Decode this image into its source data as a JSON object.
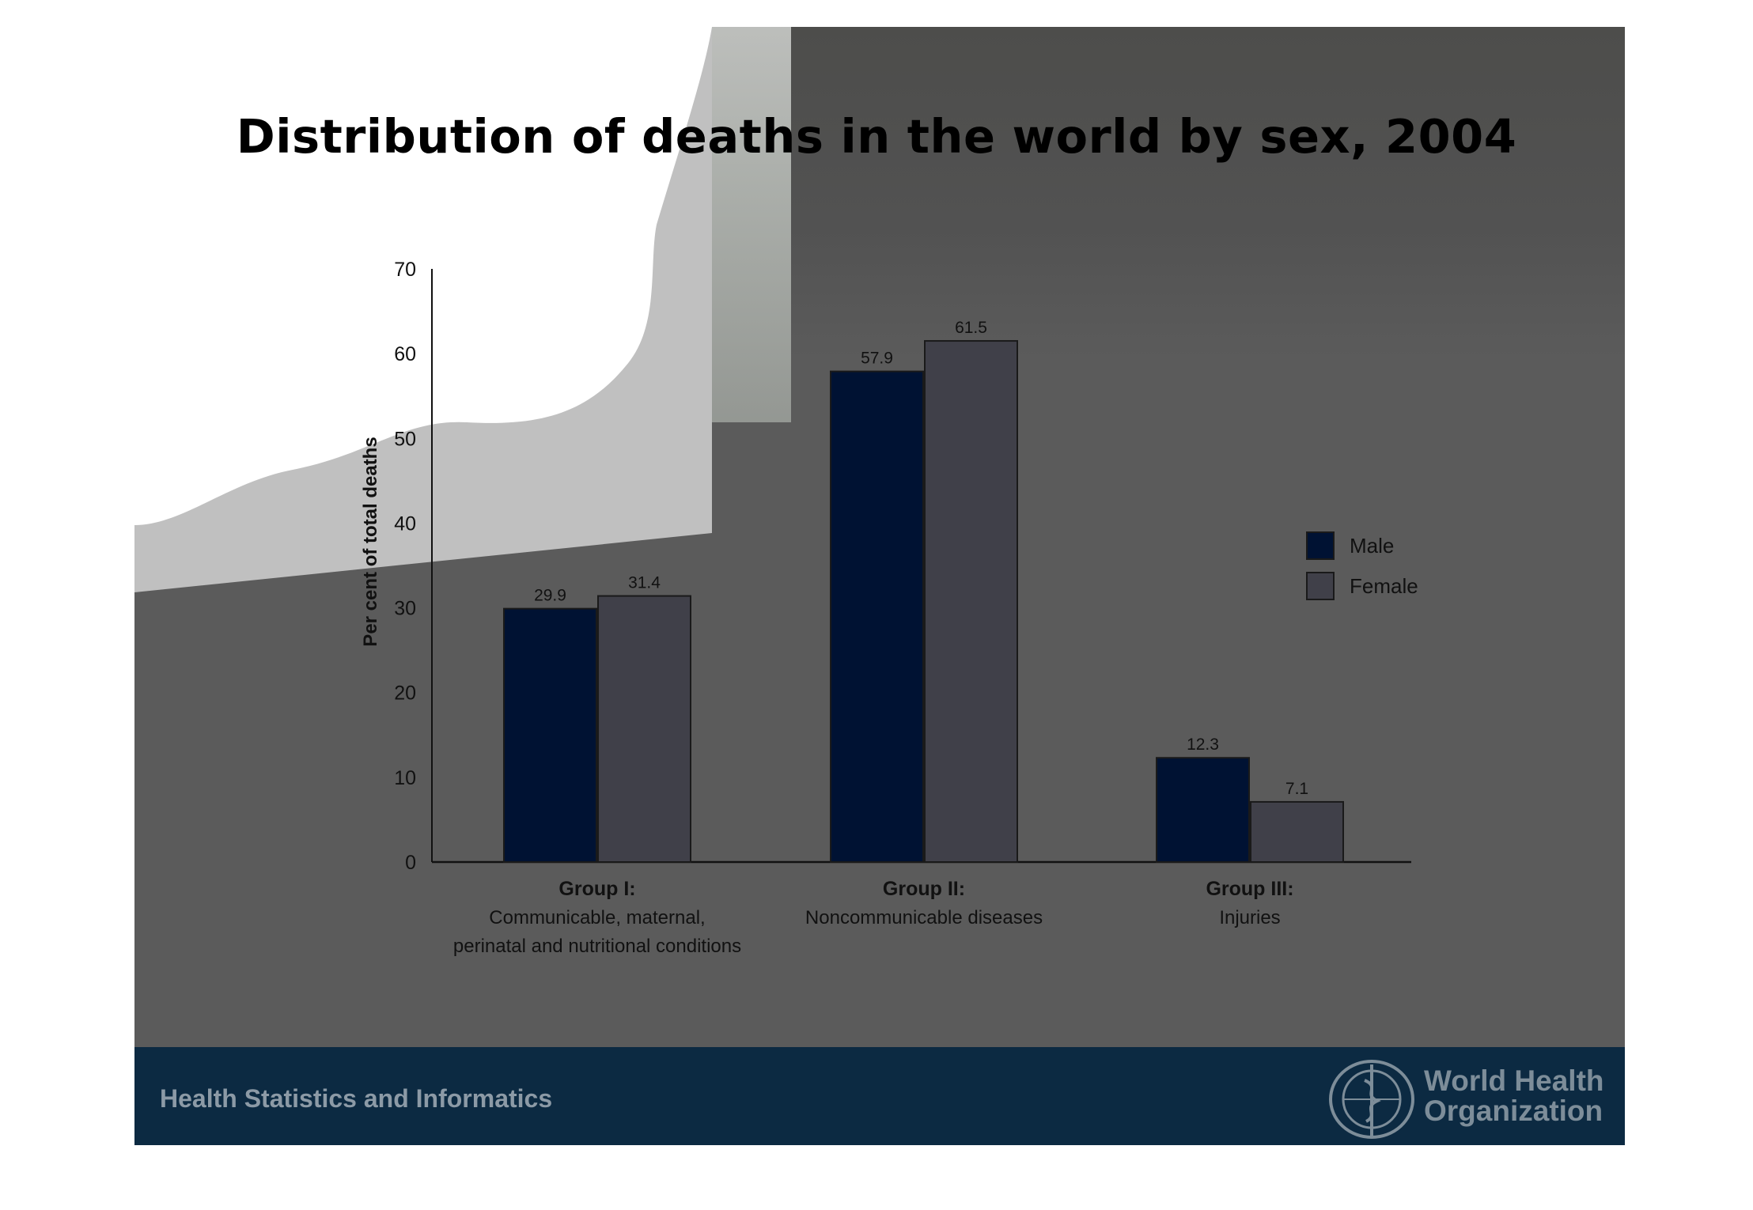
{
  "title": "Distribution of deaths in the world by sex, 2004",
  "footer": {
    "left_text": "Health Statistics and Informatics",
    "org_line1": "World Health",
    "org_line2": "Organization",
    "logo_icon": "who-emblem-icon"
  },
  "colors": {
    "male": "#001233",
    "female": "#404049",
    "slide_bg": "#5b5b5b",
    "footer_bg": "#0c2a42"
  },
  "chart_data": {
    "type": "bar",
    "title": "Distribution of deaths in the world by sex, 2004",
    "ylabel": "Per cent of  total deaths",
    "xlabel": "",
    "ylim": [
      0,
      70
    ],
    "yticks": [
      0,
      10,
      20,
      30,
      40,
      50,
      60,
      70
    ],
    "categories": [
      {
        "label": "Group I:",
        "sub": [
          "Communicable, maternal,",
          "perinatal and nutritional conditions"
        ]
      },
      {
        "label": "Group II:",
        "sub": [
          "Noncommunicable diseases"
        ]
      },
      {
        "label": "Group III:",
        "sub": [
          "Injuries"
        ]
      }
    ],
    "series": [
      {
        "name": "Male",
        "values": [
          29.9,
          57.9,
          12.3
        ],
        "labels": [
          "29.9",
          "57.9",
          "12.3"
        ]
      },
      {
        "name": "Female",
        "values": [
          31.4,
          61.5,
          7.1
        ],
        "labels": [
          "31.4",
          "61.5",
          "7.1"
        ]
      }
    ],
    "legend_position": "right",
    "grid": false
  }
}
